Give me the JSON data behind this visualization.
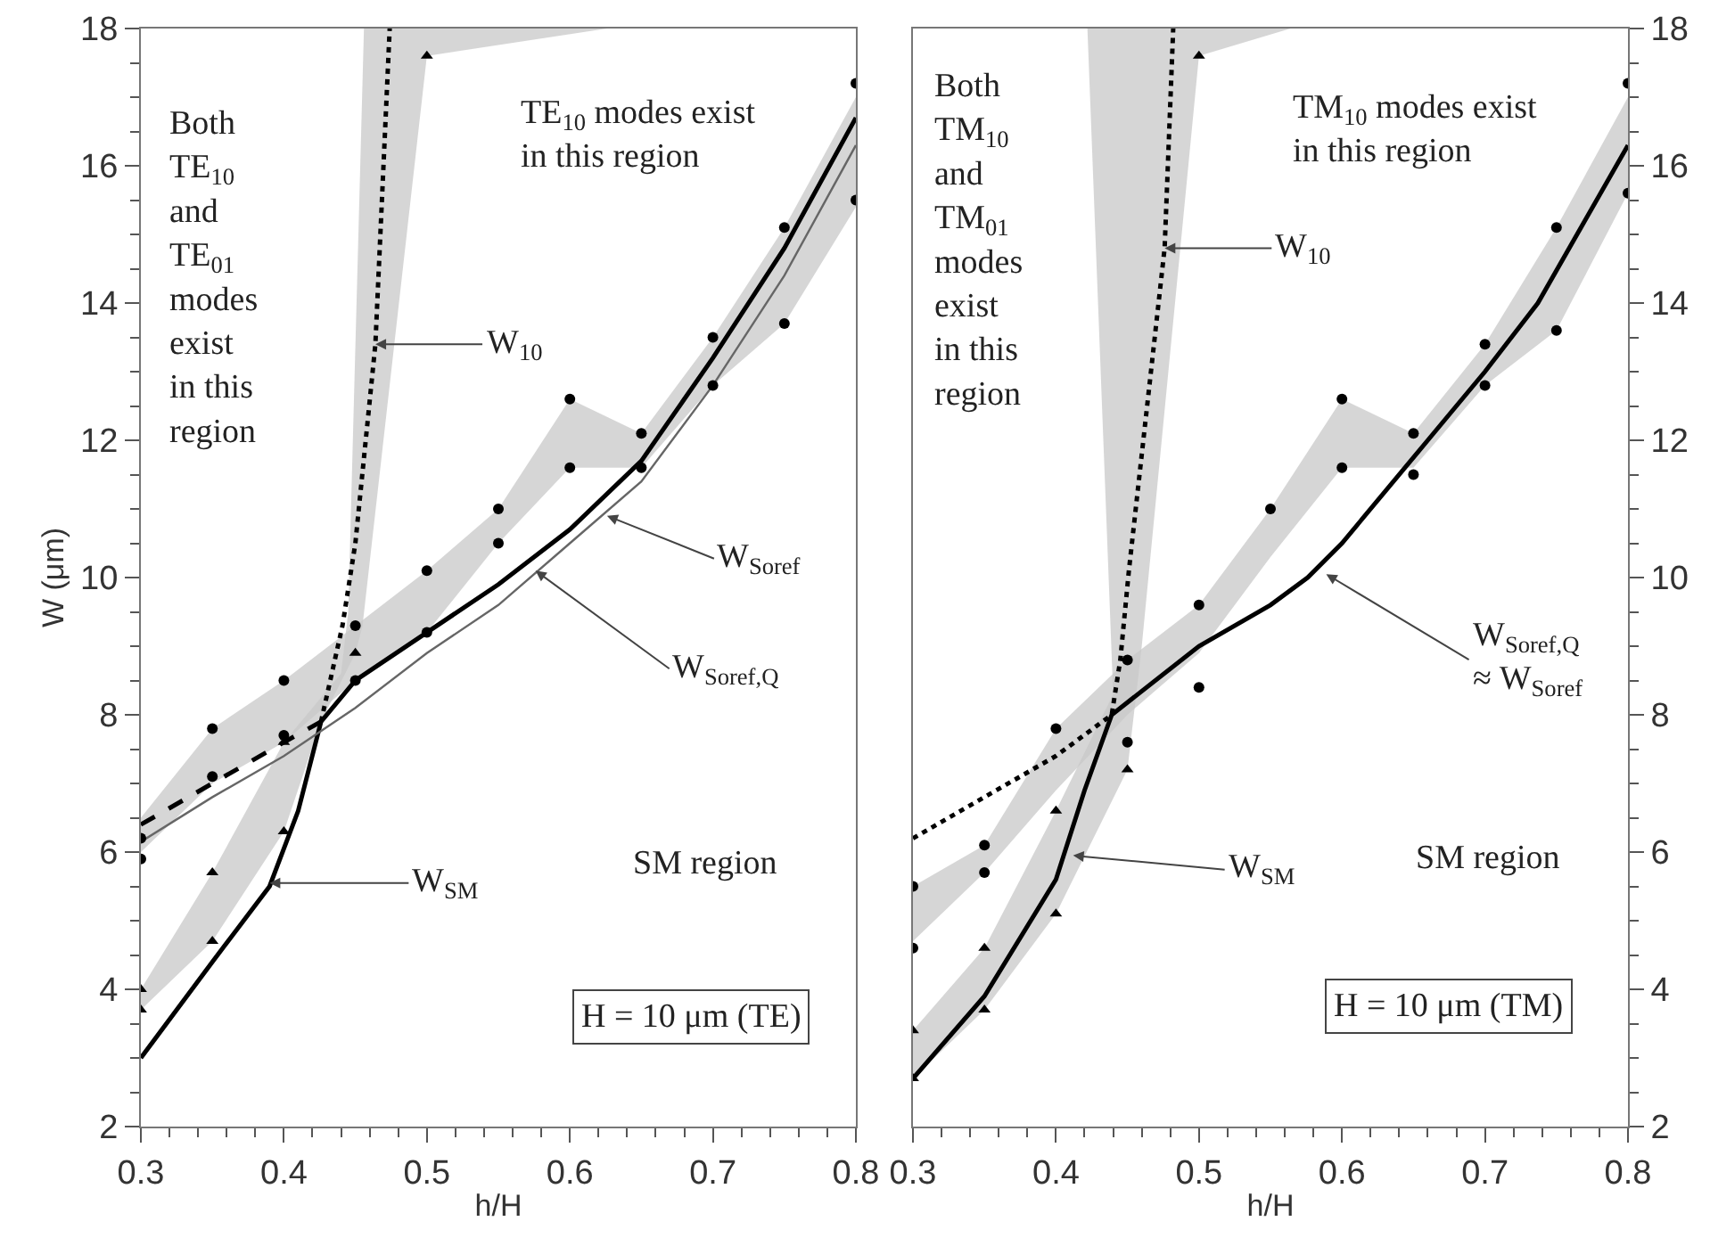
{
  "chart_data": [
    {
      "type": "line",
      "xlabel": "h/H",
      "ylabel": "W (μm)",
      "xlim": [
        0.3,
        0.8
      ],
      "xticks": [
        0.3,
        0.4,
        0.5,
        0.6,
        0.7,
        0.8
      ],
      "ylim": [
        2,
        18
      ],
      "yticks": [
        2,
        4,
        6,
        8,
        10,
        12,
        14,
        16,
        18
      ],
      "grid": false,
      "series": [
        {
          "type": "area",
          "color": "#c8c8c8",
          "x": [
            0.3,
            0.35,
            0.4,
            0.45,
            0.5,
            0.55,
            0.6,
            0.65,
            0.7,
            0.75,
            0.8,
            0.8,
            0.75,
            0.7,
            0.65,
            0.6,
            0.55,
            0.5,
            0.45,
            0.4,
            0.35,
            0.3
          ],
          "values": [
            6.5,
            7.8,
            8.5,
            9.3,
            10.1,
            11.0,
            12.6,
            12.1,
            13.5,
            15.1,
            17.0,
            15.4,
            13.7,
            12.8,
            11.6,
            11.6,
            10.5,
            9.2,
            8.5,
            7.6,
            7.0,
            6.0
          ]
        },
        {
          "type": "area",
          "color": "#c8c8c8",
          "x": [
            0.3,
            0.35,
            0.4,
            0.44,
            0.445,
            0.456,
            0.626,
            0.5,
            0.455,
            0.45,
            0.426,
            0.4,
            0.35,
            0.3
          ],
          "values": [
            4.0,
            5.7,
            7.6,
            8.6,
            9.5,
            18,
            18,
            17.6,
            9.3,
            8.9,
            7.9,
            6.3,
            4.7,
            3.7
          ]
        },
        {
          "type": "line",
          "color": "#000000",
          "line_style": "solid",
          "x": [
            0.3,
            0.35,
            0.39,
            0.41,
            0.426,
            0.45,
            0.5,
            0.55,
            0.6,
            0.65,
            0.7,
            0.75,
            0.8
          ],
          "values": [
            3.0,
            4.4,
            5.5,
            6.6,
            7.9,
            8.5,
            9.2,
            9.9,
            10.7,
            11.7,
            13.2,
            14.8,
            16.7
          ]
        },
        {
          "type": "line",
          "color": "#666666",
          "line_style": "solid",
          "x": [
            0.3,
            0.35,
            0.4,
            0.45,
            0.5,
            0.55,
            0.6,
            0.65,
            0.7,
            0.75,
            0.8
          ],
          "values": [
            6.15,
            6.8,
            7.4,
            8.1,
            8.9,
            9.6,
            10.5,
            11.4,
            12.8,
            14.4,
            16.3
          ]
        },
        {
          "type": "line",
          "color": "#000000",
          "line_style": "dashed",
          "x": [
            0.3,
            0.35,
            0.4,
            0.426
          ],
          "values": [
            6.4,
            7.0,
            7.6,
            7.9
          ]
        },
        {
          "type": "line",
          "color": "#000000",
          "line_style": "dotted",
          "x": [
            0.426,
            0.441,
            0.45,
            0.464,
            0.474
          ],
          "values": [
            7.9,
            9.3,
            10.5,
            13.4,
            18
          ]
        },
        {
          "type": "scatter",
          "color": "#000000",
          "marker": "circle",
          "x": [
            0.3,
            0.3,
            0.35,
            0.35,
            0.4,
            0.4,
            0.45,
            0.45,
            0.5,
            0.5,
            0.55,
            0.55,
            0.6,
            0.6,
            0.65,
            0.65,
            0.7,
            0.7,
            0.75,
            0.75,
            0.8,
            0.8
          ],
          "values": [
            6.2,
            5.9,
            7.8,
            7.1,
            8.5,
            7.7,
            9.3,
            8.5,
            10.1,
            9.2,
            11.0,
            10.5,
            12.6,
            11.6,
            12.1,
            11.6,
            13.5,
            12.8,
            15.1,
            13.7,
            17.2,
            15.5
          ]
        },
        {
          "type": "scatter",
          "color": "#000000",
          "marker": "triangle",
          "x": [
            0.3,
            0.3,
            0.35,
            0.35,
            0.4,
            0.4,
            0.45,
            0.5
          ],
          "values": [
            4.0,
            3.7,
            5.7,
            4.7,
            6.3,
            7.6,
            8.9,
            17.6
          ]
        }
      ],
      "annotations": [
        "Both\nTE$_{10}$\nand\nTE$_{01}$\nmodes\nexist\nin this\nregion",
        "TE$_{10}$ modes exist\nin this region",
        "SM region",
        "H = 10 μm (TE)",
        {
          "text": "W$_{10}$",
          "x": 0.464,
          "y": 13.4
        },
        {
          "text": "W$_{Soref}$",
          "x": 0.626,
          "y": 10.9
        },
        {
          "text": "W$_{Soref,Q}$",
          "x": 0.576,
          "y": 10.1
        },
        {
          "text": "W$_{SM}$",
          "x": 0.39,
          "y": 5.55
        }
      ]
    },
    {
      "type": "line",
      "xlabel": "h/H",
      "xlim": [
        0.3,
        0.8
      ],
      "xticks": [
        0.3,
        0.4,
        0.5,
        0.6,
        0.7,
        0.8
      ],
      "ylim": [
        2,
        18
      ],
      "yticks": [
        2,
        4,
        6,
        8,
        10,
        12,
        14,
        16,
        18
      ],
      "grid": false,
      "series": [
        {
          "type": "area",
          "color": "#c8c8c8",
          "x": [
            0.3,
            0.35,
            0.4,
            0.45,
            0.5,
            0.55,
            0.6,
            0.65,
            0.7,
            0.75,
            0.8,
            0.8,
            0.75,
            0.7,
            0.65,
            0.6,
            0.55,
            0.5,
            0.45,
            0.4,
            0.35,
            0.3
          ],
          "values": [
            5.5,
            6.1,
            7.8,
            8.8,
            9.6,
            11.0,
            12.6,
            12.1,
            13.4,
            15.1,
            17.0,
            15.6,
            13.6,
            12.8,
            11.6,
            11.6,
            10.3,
            8.9,
            8.0,
            6.9,
            5.7,
            4.7
          ]
        },
        {
          "type": "area",
          "color": "#c8c8c8",
          "x": [
            0.3,
            0.35,
            0.4,
            0.44,
            0.422,
            0.564,
            0.5,
            0.46,
            0.45,
            0.4,
            0.35,
            0.3
          ],
          "values": [
            3.4,
            4.6,
            6.6,
            8.3,
            18,
            18,
            17.6,
            9.0,
            7.2,
            5.1,
            3.7,
            2.7
          ]
        },
        {
          "type": "line",
          "color": "#000000",
          "line_style": "solid",
          "x": [
            0.3,
            0.35,
            0.4,
            0.42,
            0.439,
            0.5,
            0.55,
            0.576,
            0.6,
            0.66,
            0.7,
            0.737,
            0.8
          ],
          "values": [
            2.7,
            3.9,
            5.6,
            6.9,
            8.0,
            9.0,
            9.6,
            10.0,
            10.5,
            12.0,
            13.0,
            14.0,
            16.3
          ]
        },
        {
          "type": "line",
          "color": "#000000",
          "line_style": "dotted",
          "x": [
            0.3,
            0.35,
            0.4,
            0.439,
            0.445,
            0.451,
            0.476,
            0.482
          ],
          "values": [
            6.2,
            6.8,
            7.4,
            8.0,
            8.8,
            10.1,
            14.8,
            18
          ]
        },
        {
          "type": "scatter",
          "color": "#000000",
          "marker": "circle",
          "x": [
            0.3,
            0.3,
            0.35,
            0.35,
            0.4,
            0.45,
            0.45,
            0.5,
            0.5,
            0.55,
            0.6,
            0.6,
            0.65,
            0.65,
            0.7,
            0.7,
            0.75,
            0.75,
            0.8,
            0.8
          ],
          "values": [
            5.5,
            4.6,
            6.1,
            5.7,
            7.8,
            8.8,
            7.6,
            8.4,
            9.6,
            11.0,
            12.6,
            11.6,
            12.1,
            11.5,
            13.4,
            12.8,
            15.1,
            13.6,
            17.2,
            15.6
          ]
        },
        {
          "type": "scatter",
          "color": "#000000",
          "marker": "triangle",
          "x": [
            0.3,
            0.3,
            0.35,
            0.35,
            0.4,
            0.4,
            0.45,
            0.5
          ],
          "values": [
            3.4,
            2.7,
            4.6,
            3.7,
            6.6,
            5.1,
            7.2,
            17.6
          ]
        }
      ],
      "annotations": [
        "Both\nTM$_{10}$\nand\nTM$_{01}$\nmodes\nexist\nin this\nregion",
        "TM$_{10}$ modes exist\nin this region",
        "SM region",
        "H = 10 μm (TM)",
        {
          "text": "W$_{10}$",
          "x": 0.476,
          "y": 14.8
        },
        {
          "text": "W$_{Soref,Q}$\n≈ W$_{Soref}$",
          "x": 0.589,
          "y": 10.05
        },
        {
          "text": "W$_{SM}$",
          "x": 0.412,
          "y": 5.95
        }
      ]
    }
  ]
}
